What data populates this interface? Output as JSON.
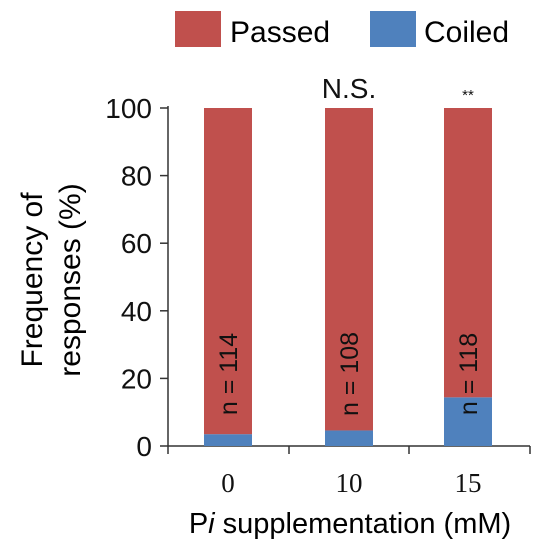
{
  "colors": {
    "passed": "#C0504D",
    "coiled": "#4F81BD",
    "axis": "#333333",
    "text": "#111111"
  },
  "chart_data": {
    "type": "bar",
    "stacked": true,
    "categories": [
      "0",
      "10",
      "15"
    ],
    "series": [
      {
        "name": "Coiled",
        "values": [
          3.5,
          4.6,
          14.4
        ]
      },
      {
        "name": "Passed",
        "values": [
          96.5,
          95.4,
          85.6
        ]
      }
    ],
    "ylim": [
      0,
      100
    ],
    "yticks": [
      "0",
      "20",
      "40",
      "60",
      "80",
      "100"
    ],
    "ylabel_lines": [
      "Frequency of",
      "responses (%)"
    ],
    "xlabel": {
      "prefix": "P",
      "italic": "i",
      "suffix": " supplementation (mM)"
    },
    "bar_labels": [
      "n = 114",
      "n = 108",
      "n = 118"
    ],
    "significance": [
      "",
      "N.S.",
      "**"
    ],
    "legend": {
      "placement": "top-right",
      "entries": [
        "Passed",
        "Coiled"
      ]
    },
    "grid": false
  }
}
